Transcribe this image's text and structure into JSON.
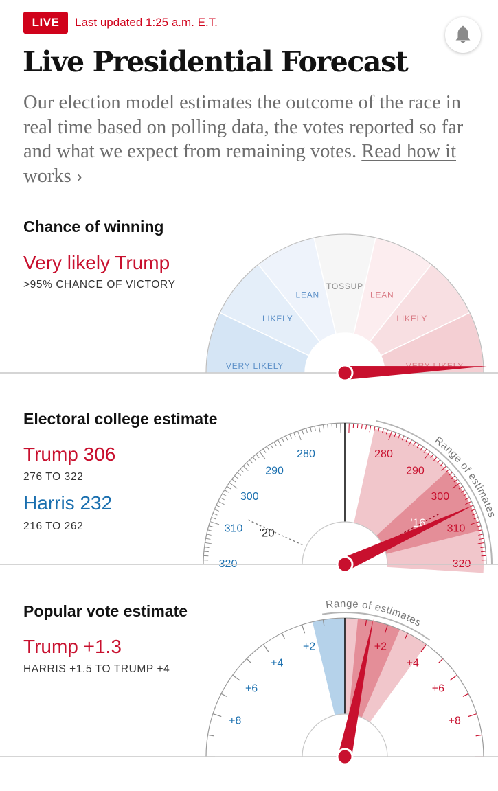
{
  "header": {
    "live_label": "LIVE",
    "updated_text": "Last updated 1:25 a.m. E.T.",
    "bell_icon": "bell-icon"
  },
  "page": {
    "title": "Live Presidential Forecast",
    "intro": "Our election model estimates the outcome of the race in real time based on polling data, the votes reported so far and what we expect from remaining votes.",
    "read_link": "Read how it works ›"
  },
  "chance": {
    "heading": "Chance of winning",
    "verdict": "Very likely Trump",
    "sub": ">95% CHANCE OF VICTORY"
  },
  "electoral": {
    "heading": "Electoral college estimate",
    "trump": "Trump 306",
    "trump_range": "276 TO 322",
    "harris": "Harris 232",
    "harris_range": "216 TO 262"
  },
  "popular": {
    "heading": "Popular vote estimate",
    "estimate": "Trump +1.3",
    "range": "HARRIS +1.5 TO TRUMP +4"
  },
  "chart_data": [
    {
      "type": "gauge",
      "title": "Chance of winning",
      "segments": [
        {
          "label": "VERY LIKELY",
          "side": "Harris",
          "color": "#d5e5f5"
        },
        {
          "label": "LIKELY",
          "side": "Harris",
          "color": "#e4eef9"
        },
        {
          "label": "LEAN",
          "side": "Harris",
          "color": "#eef3fb"
        },
        {
          "label": "TOSSUP",
          "side": "none",
          "color": "#f6f6f6"
        },
        {
          "label": "LEAN",
          "side": "Trump",
          "color": "#fcedef"
        },
        {
          "label": "LIKELY",
          "side": "Trump",
          "color": "#f8dfe2"
        },
        {
          "label": "VERY LIKELY",
          "side": "Trump",
          "color": "#f4cfd3"
        }
      ],
      "needle_position": 0.985,
      "colors": {
        "needle": "#c8102e",
        "harris_text": "#5b8fc7",
        "neutral_text": "#8f8f8f",
        "trump_text": "#d97b85"
      }
    },
    {
      "type": "gauge",
      "title": "Electoral college estimate",
      "scale_min": 218,
      "scale_max": 320,
      "center": 269,
      "harris_tick_labels": [
        280,
        290,
        300,
        310,
        320
      ],
      "trump_tick_labels": [
        280,
        290,
        300,
        310,
        320
      ],
      "estimate_trump": 306,
      "range_trump": [
        276,
        322
      ],
      "inner_range_trump": [
        296,
        312
      ],
      "past_markers": [
        {
          "label": "'20",
          "value": 306,
          "side": "Harris"
        },
        {
          "label": "'16",
          "value": 304,
          "side": "Trump"
        }
      ],
      "range_label": "Range of estimates",
      "colors": {
        "harris": "#1a6faf",
        "trump": "#c8102e"
      }
    },
    {
      "type": "gauge",
      "title": "Popular vote estimate",
      "scale_min": -10,
      "scale_max": 10,
      "harris_tick_labels": [
        "+2",
        "+4",
        "+6",
        "+8"
      ],
      "trump_tick_labels": [
        "+2",
        "+4",
        "+6",
        "+8"
      ],
      "estimate_margin": 1.3,
      "range": [
        -1.5,
        4
      ],
      "inner_range": [
        0.6,
        2.6
      ],
      "range_label": "Range of estimates",
      "colors": {
        "harris_fill": "#b5d2ea",
        "harris_text": "#1a6faf",
        "trump": "#c8102e"
      }
    }
  ]
}
